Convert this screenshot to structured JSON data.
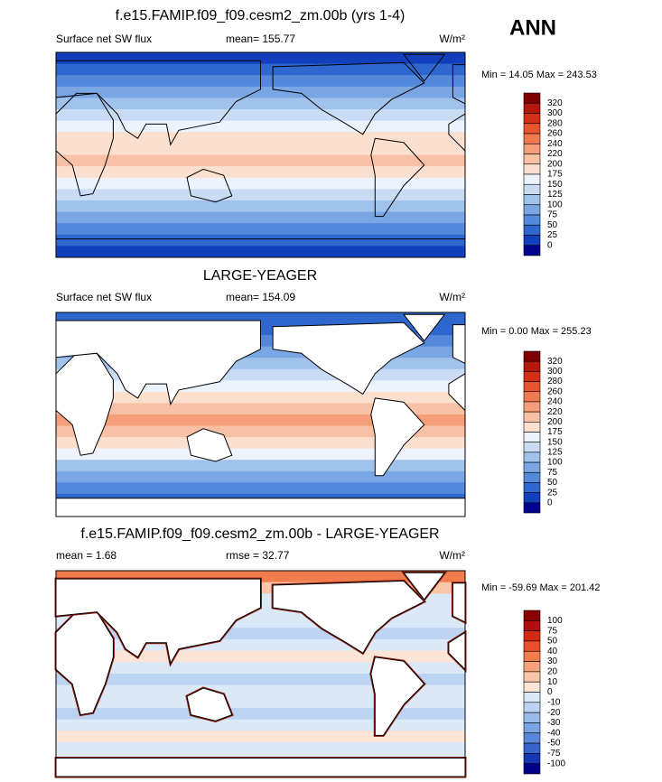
{
  "season": "ANN",
  "panels": [
    {
      "title": "f.e15.FAMIP.f09_f09.cesm2_zm.00b (yrs 1-4)",
      "left_label": "Surface net SW flux",
      "center_label": "mean= 155.77",
      "units": "W/m²",
      "range_label": "Min =  14.05 Max = 243.53",
      "levels": [
        320,
        300,
        280,
        260,
        240,
        220,
        200,
        175,
        150,
        125,
        100,
        75,
        50,
        25,
        0
      ],
      "colors": [
        "#7f0000",
        "#b2180e",
        "#d42f17",
        "#e8542d",
        "#f07a50",
        "#f59e7a",
        "#f8c0a4",
        "#fbdfcf",
        "#edf3fc",
        "#c9dcf4",
        "#a1c2ec",
        "#7aa6e3",
        "#5488da",
        "#2e68cf",
        "#1240bd",
        "#00058f"
      ],
      "land_fill": false
    },
    {
      "title": "LARGE-YEAGER",
      "left_label": "Surface net SW flux",
      "center_label": "mean= 154.09",
      "units": "W/m²",
      "range_label": "Min =   0.00 Max = 255.23",
      "levels": [
        320,
        300,
        280,
        260,
        240,
        220,
        200,
        175,
        150,
        125,
        100,
        75,
        50,
        25,
        0
      ],
      "colors": [
        "#7f0000",
        "#b2180e",
        "#d42f17",
        "#e8542d",
        "#f07a50",
        "#f59e7a",
        "#f8c0a4",
        "#fbdfcf",
        "#edf3fc",
        "#c9dcf4",
        "#a1c2ec",
        "#7aa6e3",
        "#5488da",
        "#2e68cf",
        "#1240bd",
        "#00058f"
      ],
      "land_fill": true
    },
    {
      "title": "f.e15.FAMIP.f09_f09.cesm2_zm.00b - LARGE-YEAGER",
      "left_label": "mean =   1.68",
      "center_label": "rmse =  32.77",
      "units": "W/m²",
      "range_label": "Min = -59.69 Max = 201.42",
      "levels": [
        100,
        75,
        50,
        40,
        30,
        20,
        10,
        0,
        -10,
        -20,
        -30,
        -40,
        -50,
        -75,
        -100
      ],
      "colors": [
        "#8b0000",
        "#b01010",
        "#d42a12",
        "#e9502b",
        "#f17c4e",
        "#f6a27c",
        "#f9c6aa",
        "#fce4d6",
        "#dbe8f8",
        "#bcd3f2",
        "#9bbcea",
        "#7aa3e2",
        "#5886d8",
        "#3565cc",
        "#1438b4",
        "#00008b"
      ],
      "land_fill": true
    }
  ]
}
